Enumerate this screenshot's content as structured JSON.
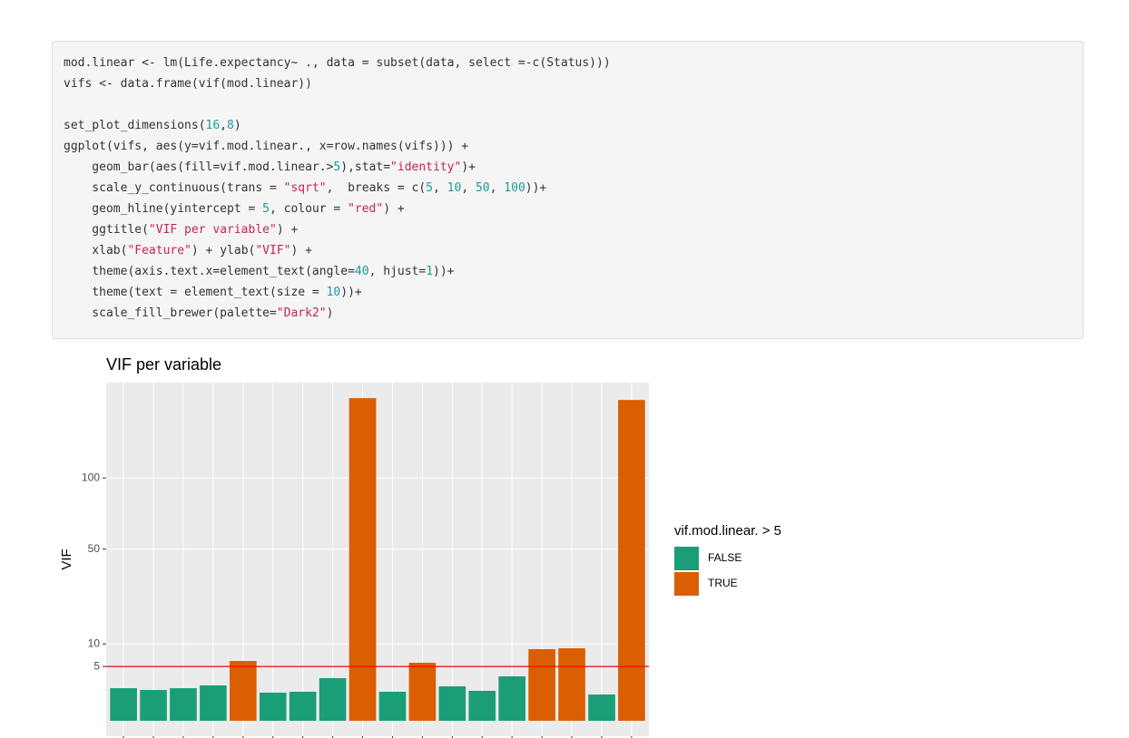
{
  "code": {
    "lines": [
      "mod.linear <- lm(Life.expectancy~ ., data = subset(data, select =-c(Status)))",
      "vifs <- data.frame(vif(mod.linear))",
      "set_plot_dimensions(16,8)",
      "ggplot(vifs, aes(y=vif.mod.linear., x=row.names(vifs))) +",
      "    geom_bar(aes(fill=vif.mod.linear.>5),stat=\"identity\")+",
      "    scale_y_continuous(trans = \"sqrt\",  breaks = c(5, 10, 50, 100))+",
      "    geom_hline(yintercept = 5, colour = \"red\") +",
      "    ggtitle(\"VIF per variable\") +",
      "    xlab(\"Feature\") + ylab(\"VIF\") +",
      "    theme(axis.text.x=element_text(angle=40, hjust=1))+",
      "    theme(text = element_text(size = 10))+",
      "    scale_fill_brewer(palette=\"Dark2\")"
    ]
  },
  "chart_data": {
    "type": "bar",
    "title": "VIF per variable",
    "y_label": "VIF",
    "categories": [
      null,
      null,
      null,
      null,
      null,
      null,
      null,
      null,
      null,
      null,
      null,
      null,
      null,
      null,
      null,
      null,
      null,
      null
    ],
    "legend_title": "vif.mod.linear. > 5",
    "series": [
      {
        "name": "FALSE",
        "color": "#1b9e77",
        "values": [
          1.8,
          1.61,
          1.8,
          2.12,
          null,
          1.34,
          1.43,
          3.08,
          null,
          1.43,
          null,
          2.01,
          1.52,
          3.35,
          null,
          null,
          1.17,
          null
        ]
      },
      {
        "name": "TRUE",
        "color": "#d95f02",
        "values": [
          null,
          null,
          null,
          null,
          6.07,
          null,
          null,
          null,
          176.6,
          null,
          5.71,
          null,
          null,
          null,
          8.7,
          8.92,
          null,
          174.6
        ]
      }
    ],
    "y_scale": "sqrt",
    "ylim": [
      0,
      194
    ],
    "yticks": [
      5,
      10,
      50,
      100
    ],
    "grid": true,
    "hline": {
      "value": 5,
      "color": "red"
    },
    "legend": "right"
  }
}
